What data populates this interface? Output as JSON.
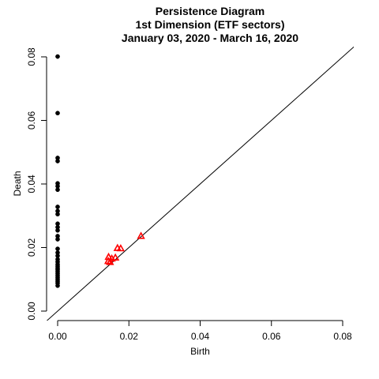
{
  "chart_data": {
    "type": "scatter",
    "title_lines": [
      "Persistence Diagram",
      "1st Dimension (ETF sectors)",
      "January 03, 2020 - March 16, 2020"
    ],
    "xlabel": "Birth",
    "ylabel": "Death",
    "xlim": [
      0,
      0.08
    ],
    "ylim": [
      0,
      0.08
    ],
    "x_ticks": [
      "0.00",
      "0.02",
      "0.04",
      "0.06",
      "0.08"
    ],
    "y_ticks": [
      "0.00",
      "0.02",
      "0.04",
      "0.06",
      "0.08"
    ],
    "reference_line": "y = x",
    "series": [
      {
        "marker": "filled-circle",
        "color": "#000000",
        "x": [
          0,
          0,
          0,
          0,
          0,
          0,
          0,
          0,
          0,
          0,
          0,
          0,
          0,
          0,
          0,
          0,
          0,
          0,
          0,
          0,
          0,
          0,
          0,
          0,
          0,
          0,
          0,
          0,
          0,
          0,
          0,
          0
        ],
        "y": [
          0.0801,
          0.0623,
          0.0482,
          0.0472,
          0.0402,
          0.0393,
          0.0382,
          0.0328,
          0.0315,
          0.0305,
          0.0275,
          0.0264,
          0.0254,
          0.0236,
          0.0226,
          0.0196,
          0.0184,
          0.0174,
          0.0163,
          0.0155,
          0.0147,
          0.0141,
          0.0135,
          0.013,
          0.0124,
          0.0118,
          0.0112,
          0.0106,
          0.01,
          0.0094,
          0.0088,
          0.008
        ]
      },
      {
        "marker": "open-triangle",
        "color": "#ff0000",
        "x": [
          0.0142,
          0.0143,
          0.0147,
          0.0152,
          0.0162,
          0.0168,
          0.0177,
          0.0234
        ],
        "y": [
          0.0157,
          0.017,
          0.0154,
          0.0165,
          0.0168,
          0.0198,
          0.0197,
          0.0236
        ]
      }
    ]
  }
}
